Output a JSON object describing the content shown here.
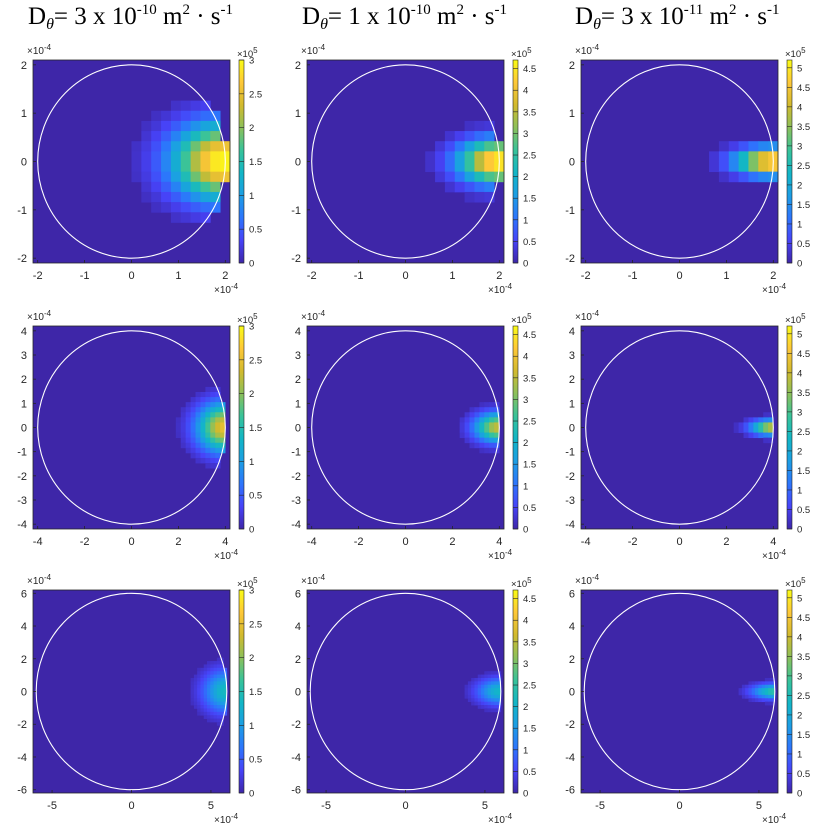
{
  "titles": [
    {
      "prefix": "D",
      "sub": "θ",
      "body": "= 3 x 10",
      "exp": "-10",
      "unit": " m",
      "unit_exp": "2",
      "tail": " · s",
      "tail_exp": "-1"
    },
    {
      "prefix": "D",
      "sub": "θ",
      "body": "= 1 x 10",
      "exp": "-10",
      "unit": " m",
      "unit_exp": "2",
      "tail": " · s",
      "tail_exp": "-1"
    },
    {
      "prefix": "D",
      "sub": "θ",
      "body": "= 3 x 10",
      "exp": "-11",
      "unit": " m",
      "unit_exp": "2",
      "tail": " · s",
      "tail_exp": "-1"
    }
  ],
  "colormap": [
    "#3e26a8",
    "#4743f8",
    "#2d75fc",
    "#1c9ee4",
    "#12b6c6",
    "#38c39a",
    "#8cc05a",
    "#d2ba2e",
    "#fec838",
    "#f9fb15"
  ],
  "circle_color": "#ffffff",
  "chart_data": [
    {
      "type": "heatmap",
      "row": 0,
      "col": 0,
      "axis_limit": 2.1,
      "circle_radius": 2.0,
      "xticks": [
        -2,
        -1,
        0,
        1,
        2
      ],
      "yticks": [
        -2,
        -1,
        0,
        1,
        2
      ],
      "axis_multiplier": "×10",
      "axis_multiplier_exp": "-4",
      "colorbar_ticks": [
        0,
        0.5,
        1,
        1.5,
        2,
        2.5,
        3
      ],
      "colorbar_max": 3.0,
      "colorbar_multiplier": "×10",
      "colorbar_multiplier_exp": "5",
      "peak_x": 1.95,
      "peak_value": 3.0,
      "spread_x": 0.75,
      "spread_y": 0.55,
      "grid_n": 20
    },
    {
      "type": "heatmap",
      "row": 0,
      "col": 1,
      "axis_limit": 2.1,
      "circle_radius": 2.0,
      "xticks": [
        -2,
        -1,
        0,
        1,
        2
      ],
      "yticks": [
        -2,
        -1,
        0,
        1,
        2
      ],
      "axis_multiplier": "×10",
      "axis_multiplier_exp": "-4",
      "colorbar_ticks": [
        0,
        0.5,
        1,
        1.5,
        2,
        2.5,
        3,
        3.5,
        4,
        4.5
      ],
      "colorbar_max": 4.7,
      "colorbar_multiplier": "×10",
      "colorbar_multiplier_exp": "5",
      "peak_x": 2.0,
      "peak_value": 4.7,
      "spread_x": 0.6,
      "spread_y": 0.32,
      "grid_n": 20
    },
    {
      "type": "heatmap",
      "row": 0,
      "col": 2,
      "axis_limit": 2.1,
      "circle_radius": 2.0,
      "xticks": [
        -2,
        -1,
        0,
        1,
        2
      ],
      "yticks": [
        -2,
        -1,
        0,
        1,
        2
      ],
      "axis_multiplier": "×10",
      "axis_multiplier_exp": "-4",
      "colorbar_ticks": [
        0,
        0.5,
        1,
        1.5,
        2,
        2.5,
        3,
        3.5,
        4,
        4.5,
        5
      ],
      "colorbar_max": 5.2,
      "colorbar_multiplier": "×10",
      "colorbar_multiplier_exp": "5",
      "peak_x": 2.0,
      "peak_value": 5.2,
      "spread_x": 0.55,
      "spread_y": 0.2,
      "grid_n": 20
    },
    {
      "type": "heatmap",
      "row": 1,
      "col": 0,
      "axis_limit": 4.2,
      "circle_radius": 4.0,
      "xticks": [
        -4,
        -2,
        0,
        2,
        4
      ],
      "yticks": [
        -4,
        -3,
        -2,
        -1,
        0,
        1,
        2,
        3,
        4
      ],
      "axis_multiplier": "×10",
      "axis_multiplier_exp": "-4",
      "colorbar_ticks": [
        0,
        0.5,
        1,
        1.5,
        2,
        2.5,
        3
      ],
      "colorbar_max": 3.0,
      "colorbar_multiplier": "×10",
      "colorbar_multiplier_exp": "5",
      "peak_x": 3.95,
      "peak_value": 2.5,
      "spread_x": 0.8,
      "spread_y": 0.7,
      "grid_n": 40
    },
    {
      "type": "heatmap",
      "row": 1,
      "col": 1,
      "axis_limit": 4.2,
      "circle_radius": 4.0,
      "xticks": [
        -4,
        -2,
        0,
        2,
        4
      ],
      "yticks": [
        -4,
        -3,
        -2,
        -1,
        0,
        1,
        2,
        3,
        4
      ],
      "axis_multiplier": "×10",
      "axis_multiplier_exp": "-4",
      "colorbar_ticks": [
        0,
        0.5,
        1,
        1.5,
        2,
        2.5,
        3,
        3.5,
        4,
        4.5
      ],
      "colorbar_max": 4.7,
      "colorbar_multiplier": "×10",
      "colorbar_multiplier_exp": "5",
      "peak_x": 3.95,
      "peak_value": 3.6,
      "spread_x": 0.7,
      "spread_y": 0.42,
      "grid_n": 40
    },
    {
      "type": "heatmap",
      "row": 1,
      "col": 2,
      "axis_limit": 4.2,
      "circle_radius": 4.0,
      "xticks": [
        -4,
        -2,
        0,
        2,
        4
      ],
      "yticks": [
        -4,
        -3,
        -2,
        -1,
        0,
        1,
        2,
        3,
        4
      ],
      "axis_multiplier": "×10",
      "axis_multiplier_exp": "-4",
      "colorbar_ticks": [
        0,
        0.5,
        1,
        1.5,
        2,
        2.5,
        3,
        3.5,
        4,
        4.5,
        5
      ],
      "colorbar_max": 5.2,
      "colorbar_multiplier": "×10",
      "colorbar_multiplier_exp": "5",
      "peak_x": 4.0,
      "peak_value": 4.2,
      "spread_x": 0.65,
      "spread_y": 0.22,
      "grid_n": 40
    },
    {
      "type": "heatmap",
      "row": 2,
      "col": 0,
      "axis_limit": 6.2,
      "circle_radius": 6.0,
      "xticks": [
        -5,
        0,
        5
      ],
      "yticks": [
        -6,
        -4,
        -2,
        0,
        2,
        4,
        6
      ],
      "axis_multiplier": "×10",
      "axis_multiplier_exp": "-4",
      "colorbar_ticks": [
        0,
        0.5,
        1,
        1.5,
        2,
        2.5,
        3
      ],
      "colorbar_max": 3.0,
      "colorbar_multiplier": "×10",
      "colorbar_multiplier_exp": "5",
      "peak_x": 5.95,
      "peak_value": 1.4,
      "spread_x": 1.0,
      "spread_y": 0.9,
      "grid_n": 60
    },
    {
      "type": "heatmap",
      "row": 2,
      "col": 1,
      "axis_limit": 6.2,
      "circle_radius": 6.0,
      "xticks": [
        -5,
        0,
        5
      ],
      "yticks": [
        -6,
        -4,
        -2,
        0,
        2,
        4,
        6
      ],
      "axis_multiplier": "×10",
      "axis_multiplier_exp": "-4",
      "colorbar_ticks": [
        0,
        0.5,
        1,
        1.5,
        2,
        2.5,
        3,
        3.5,
        4,
        4.5
      ],
      "colorbar_max": 4.7,
      "colorbar_multiplier": "×10",
      "colorbar_multiplier_exp": "5",
      "peak_x": 5.95,
      "peak_value": 2.1,
      "spread_x": 1.0,
      "spread_y": 0.55,
      "grid_n": 60
    },
    {
      "type": "heatmap",
      "row": 2,
      "col": 2,
      "axis_limit": 6.2,
      "circle_radius": 6.0,
      "xticks": [
        -5,
        0,
        5
      ],
      "yticks": [
        -6,
        -4,
        -2,
        0,
        2,
        4,
        6
      ],
      "axis_multiplier": "×10",
      "axis_multiplier_exp": "-4",
      "colorbar_ticks": [
        0,
        0.5,
        1,
        1.5,
        2,
        2.5,
        3,
        3.5,
        4,
        4.5,
        5
      ],
      "colorbar_max": 5.2,
      "colorbar_multiplier": "×10",
      "colorbar_multiplier_exp": "5",
      "peak_x": 6.0,
      "peak_value": 2.8,
      "spread_x": 1.0,
      "spread_y": 0.32,
      "grid_n": 60
    }
  ]
}
